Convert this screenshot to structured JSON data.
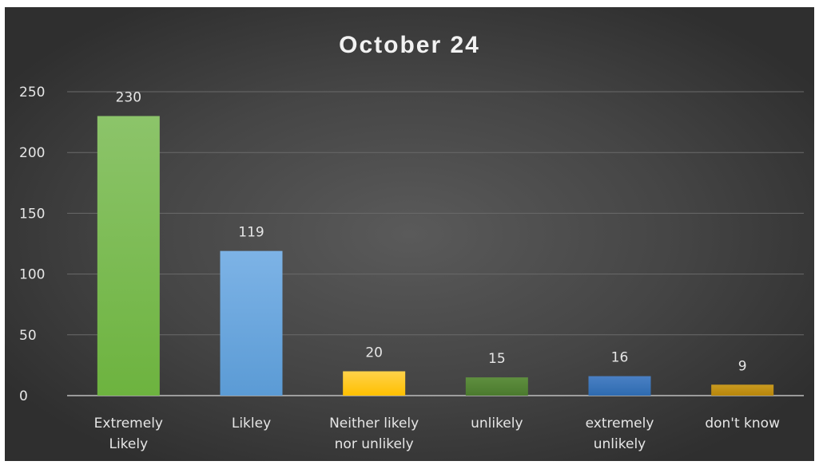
{
  "chart_data": {
    "type": "bar",
    "title": "October 24",
    "xlabel": "",
    "ylabel": "",
    "ylim": [
      0,
      250
    ],
    "yticks": [
      0,
      50,
      100,
      150,
      200,
      250
    ],
    "grid": true,
    "legend": "none",
    "categories": [
      [
        "Extremely",
        "Likely"
      ],
      [
        "Likley"
      ],
      [
        "Neither likely",
        "nor unlikely"
      ],
      [
        "unlikely"
      ],
      [
        "extremely",
        "unlikely"
      ],
      [
        "don't know"
      ]
    ],
    "values": [
      230,
      119,
      20,
      15,
      16,
      9
    ],
    "colors": [
      "#6db33f",
      "#5b9bd5",
      "#ffc000",
      "#4b7a2e",
      "#2e6bb0",
      "#b8860b"
    ],
    "gradient_top": [
      "#8cc46a",
      "#7db3e6",
      "#ffd24a",
      "#5f8f3f",
      "#4a80c4",
      "#c99a20"
    ]
  }
}
